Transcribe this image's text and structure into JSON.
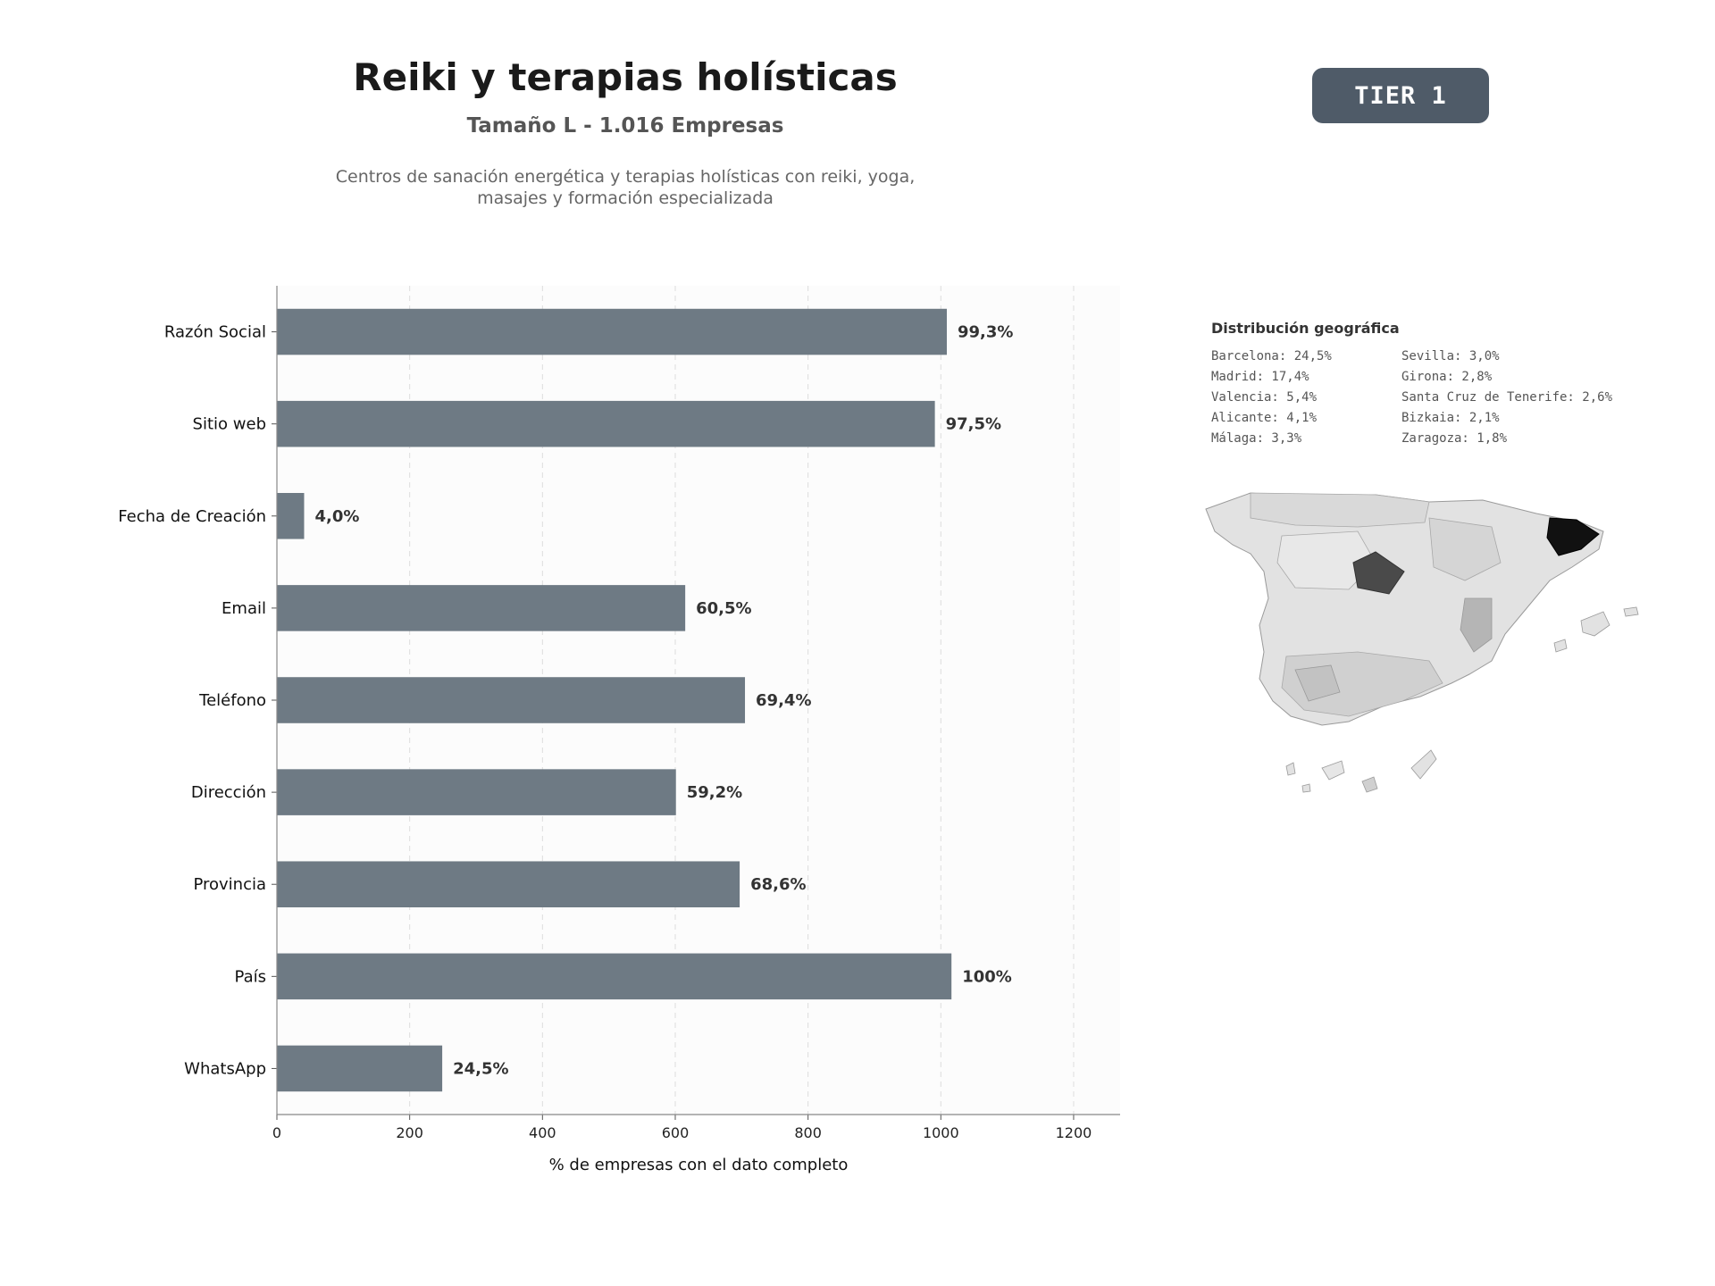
{
  "header": {
    "title": "Reiki y terapias holísticas",
    "subtitle": "Tamaño L - 1.016 Empresas",
    "description_line1": "Centros de sanación energética y terapias holísticas con reiki, yoga,",
    "description_line2": "masajes y formación especializada",
    "tier_label": "TIER 1"
  },
  "chart_data": {
    "type": "bar",
    "orientation": "horizontal",
    "categories": [
      "Razón Social",
      "Sitio web",
      "Fecha de Creación",
      "Email",
      "Teléfono",
      "Dirección",
      "Provincia",
      "País",
      "WhatsApp"
    ],
    "values": [
      1009,
      991,
      41,
      615,
      705,
      601,
      697,
      1016,
      249
    ],
    "data_labels": [
      "99,3%",
      "97,5%",
      "4,0%",
      "60,5%",
      "69,4%",
      "59,2%",
      "68,6%",
      "100%",
      "24,5%"
    ],
    "xlabel": "% de empresas con el dato completo",
    "ylabel": "",
    "xlim": [
      0,
      1270
    ],
    "xticks": [
      0,
      200,
      400,
      600,
      800,
      1000,
      1200
    ],
    "grid": "x, dashed",
    "bar_color": "#6e7a84"
  },
  "geo": {
    "title": "Distribución geográfica",
    "entries": [
      "Barcelona: 24,5%",
      "Sevilla: 3,0%",
      "Madrid: 17,4%",
      "Girona: 2,8%",
      "Valencia: 5,4%",
      "Santa Cruz de Tenerife: 2,6%",
      "Alicante: 4,1%",
      "Bizkaia: 2,1%",
      "Málaga: 3,3%",
      "Zaragoza: 1,8%"
    ]
  }
}
